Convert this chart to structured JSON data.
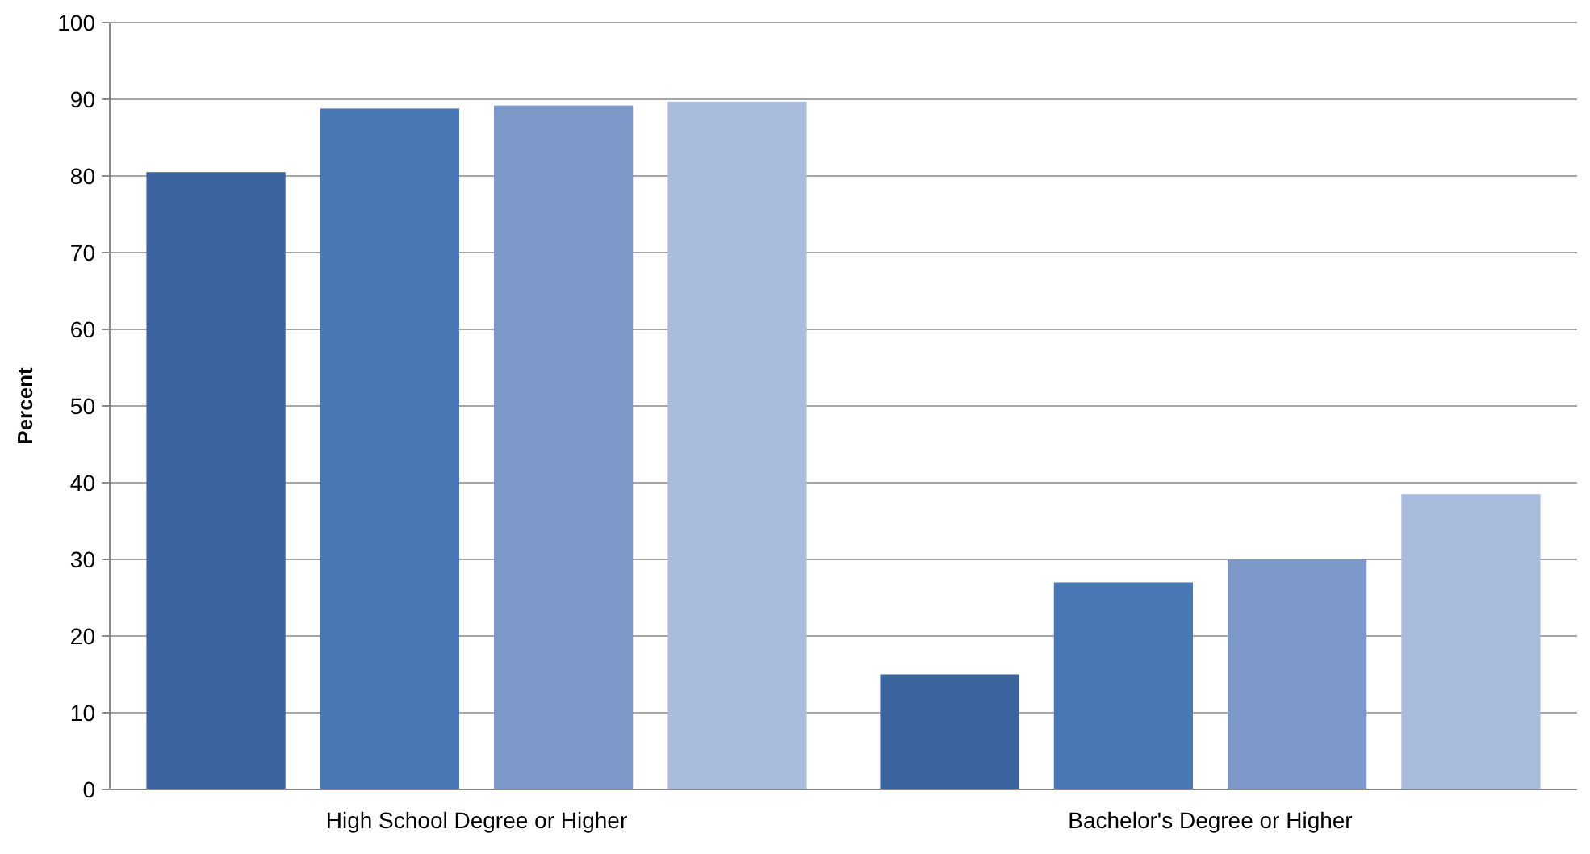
{
  "chart_data": {
    "type": "bar",
    "ylabel": "Percent",
    "categories": [
      "High School Degree or Higher",
      "Bachelor's Degree or Higher"
    ],
    "series": [
      {
        "color": "#3b639e",
        "values": [
          80.5,
          15
        ]
      },
      {
        "color": "#4a77b6",
        "values": [
          88.8,
          27
        ]
      },
      {
        "color": "#7c98c9",
        "values": [
          89.2,
          30
        ]
      },
      {
        "color": "#a9bcdd",
        "values": [
          89.7,
          38.5
        ]
      }
    ],
    "ylim": [
      0,
      100
    ],
    "yticks": [
      0,
      10,
      20,
      30,
      40,
      50,
      60,
      70,
      80,
      90,
      100
    ],
    "grid": "y"
  }
}
